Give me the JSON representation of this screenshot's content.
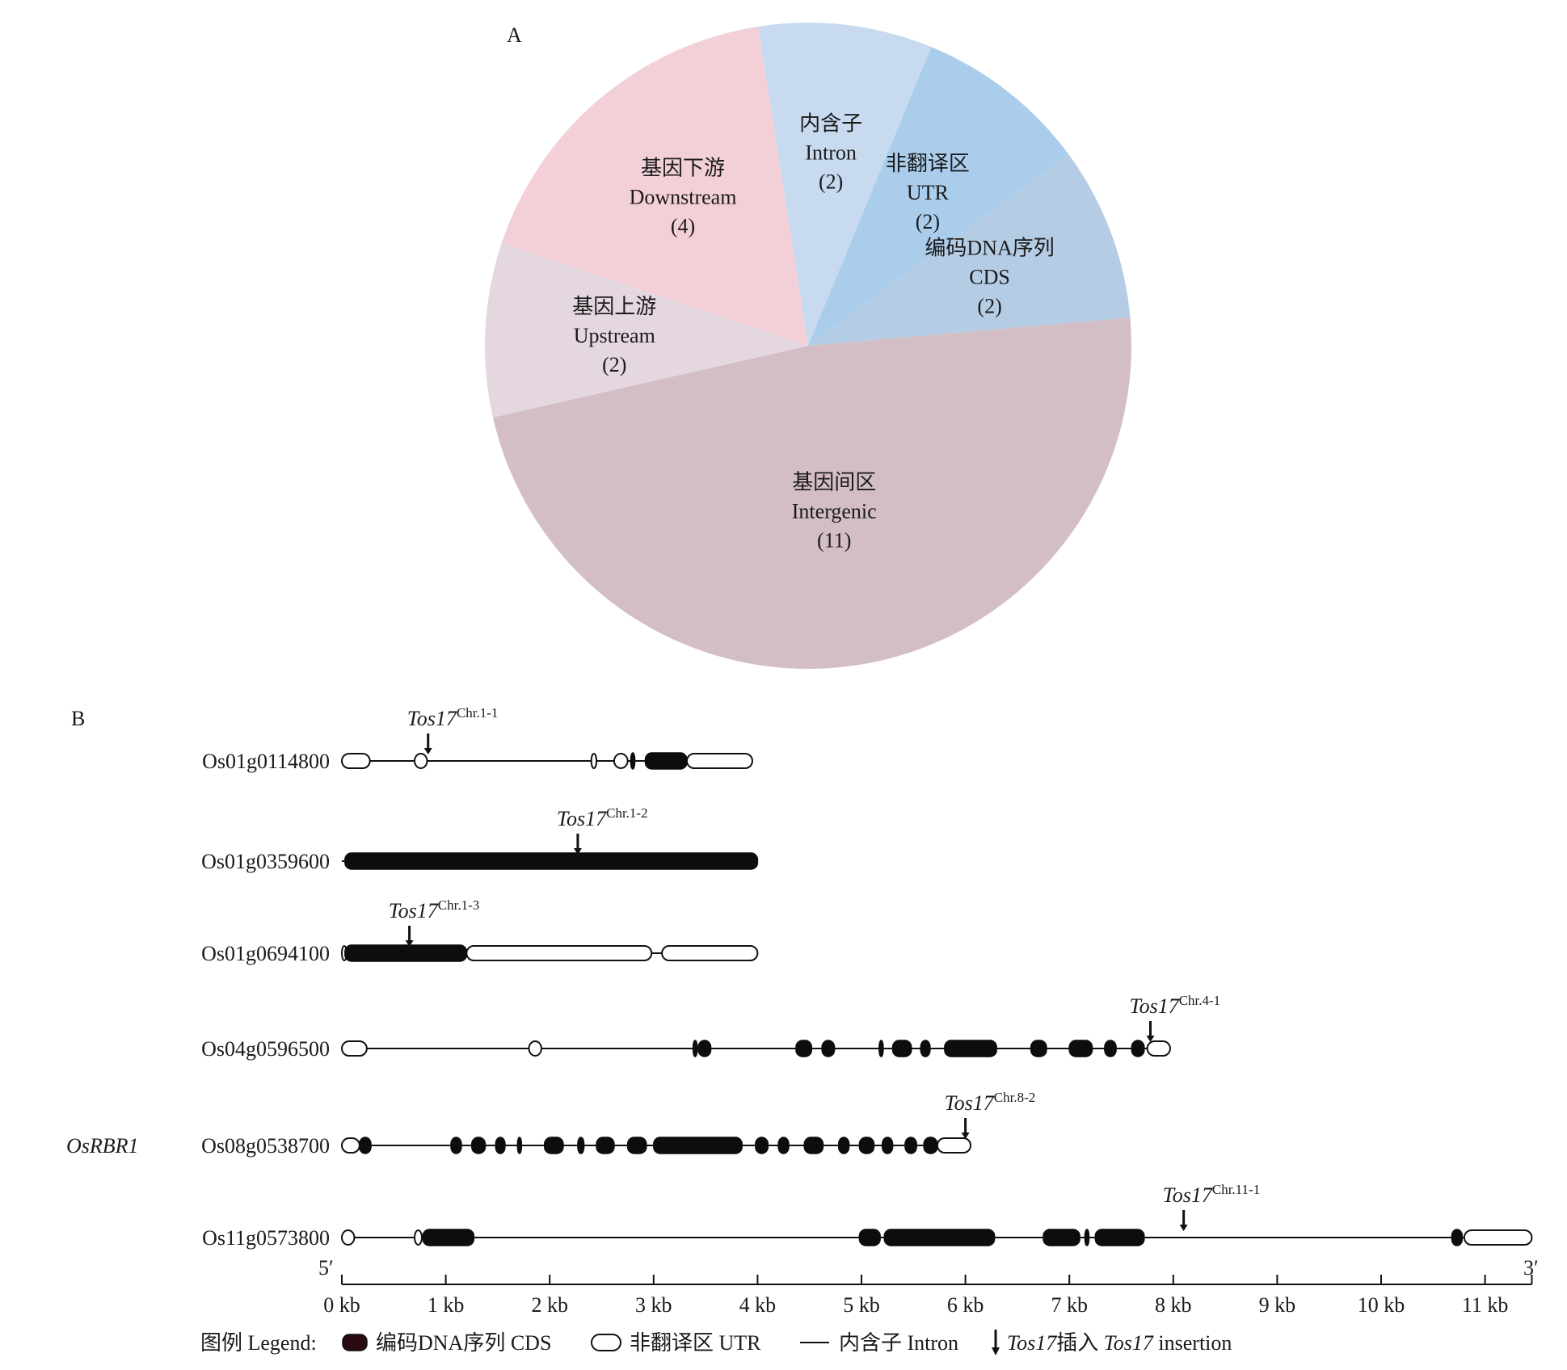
{
  "chart_data": [
    {
      "type": "pie",
      "panel_label": "A",
      "slices": [
        {
          "zh": "基因间区",
          "en": "Intergenic",
          "count_label": "(11)",
          "value": 11,
          "color": "#d3bec5"
        },
        {
          "zh": "基因上游",
          "en": "Upstream",
          "count_label": "(2)",
          "value": 2,
          "color": "#e5d7e0"
        },
        {
          "zh": "基因下游",
          "en": "Downstream",
          "count_label": "(4)",
          "value": 4,
          "color": "#f3d0d8"
        },
        {
          "zh": "内含子",
          "en": "Intron",
          "count_label": "(2)",
          "value": 2,
          "color": "#c7daef"
        },
        {
          "zh": "非翻译区",
          "en": "UTR",
          "count_label": "(2)",
          "value": 2,
          "color": "#abcdec"
        },
        {
          "zh": "编码DNA序列",
          "en": "CDS",
          "count_label": "(2)",
          "value": 2,
          "color": "#b5cde4"
        }
      ]
    },
    {
      "type": "gene-structure",
      "panel_label": "B",
      "end_labels": {
        "left": "5′",
        "right": "3′"
      },
      "x_ticks": [
        "0 kb",
        "1 kb",
        "2 kb",
        "3 kb",
        "4 kb",
        "5 kb",
        "6 kb",
        "7 kb",
        "8 kb",
        "9 kb",
        "10 kb",
        "11 kb"
      ],
      "x_range_kb": [
        0,
        11.45
      ],
      "genes": [
        {
          "id": "Os01g0114800",
          "alias": "",
          "length_kb": 3.95,
          "utr": [
            [
              0,
              0.27
            ],
            [
              0.7,
              0.82
            ],
            [
              2.4,
              2.45
            ],
            [
              2.62,
              2.75
            ],
            [
              3.32,
              3.95
            ]
          ],
          "cds": [
            [
              2.78,
              2.8
            ],
            [
              2.92,
              3.32
            ]
          ],
          "insertion": {
            "label": "Tos17",
            "sup": "Chr.1-1",
            "pos_kb": 0.83
          }
        },
        {
          "id": "Os01g0359600",
          "alias": "",
          "length_kb": 4.0,
          "utr": [],
          "cds": [
            [
              0.03,
              4.0
            ]
          ],
          "insertion": {
            "label": "Tos17",
            "sup": "Chr.1-2",
            "pos_kb": 2.27
          }
        },
        {
          "id": "Os01g0694100",
          "alias": "",
          "length_kb": 4.0,
          "utr": [
            [
              0,
              0.03
            ],
            [
              1.2,
              2.98
            ],
            [
              3.08,
              4.0
            ]
          ],
          "cds": [
            [
              0.03,
              1.2
            ]
          ],
          "insertion": {
            "label": "Tos17",
            "sup": "Chr.1-3",
            "pos_kb": 0.65
          }
        },
        {
          "id": "Os04g0596500",
          "alias": "",
          "length_kb": 7.97,
          "utr": [
            [
              0,
              0.24
            ],
            [
              1.8,
              1.92
            ],
            [
              7.75,
              7.97
            ]
          ],
          "cds": [
            [
              3.38,
              3.4
            ],
            [
              3.43,
              3.55
            ],
            [
              4.37,
              4.52
            ],
            [
              4.62,
              4.74
            ],
            [
              5.17,
              5.2
            ],
            [
              5.3,
              5.48
            ],
            [
              5.57,
              5.66
            ],
            [
              5.8,
              6.3
            ],
            [
              6.63,
              6.78
            ],
            [
              7.0,
              7.22
            ],
            [
              7.34,
              7.45
            ],
            [
              7.6,
              7.72
            ]
          ],
          "insertion": {
            "label": "Tos17",
            "sup": "Chr.4-1",
            "pos_kb": 7.78
          }
        },
        {
          "id": "Os08g0538700",
          "alias": "OsRBR1",
          "length_kb": 6.05,
          "utr": [
            [
              0,
              0.17
            ],
            [
              5.73,
              6.05
            ]
          ],
          "cds": [
            [
              0.17,
              0.28
            ],
            [
              1.05,
              1.15
            ],
            [
              1.25,
              1.38
            ],
            [
              1.48,
              1.57
            ],
            [
              1.69,
              1.72
            ],
            [
              1.95,
              2.13
            ],
            [
              2.27,
              2.33
            ],
            [
              2.45,
              2.62
            ],
            [
              2.75,
              2.93
            ],
            [
              3.0,
              3.85
            ],
            [
              3.98,
              4.1
            ],
            [
              4.2,
              4.3
            ],
            [
              4.45,
              4.63
            ],
            [
              4.78,
              4.88
            ],
            [
              4.98,
              5.12
            ],
            [
              5.2,
              5.3
            ],
            [
              5.42,
              5.53
            ],
            [
              5.6,
              5.73
            ]
          ],
          "insertion": {
            "label": "Tos17",
            "sup": "Chr.8-2",
            "pos_kb": 6.0
          }
        },
        {
          "id": "Os11g0573800",
          "alias": "",
          "length_kb": 11.45,
          "utr": [
            [
              0,
              0.12
            ],
            [
              0.7,
              0.77
            ],
            [
              10.8,
              11.45
            ]
          ],
          "cds": [
            [
              0.78,
              1.27
            ],
            [
              4.98,
              5.18
            ],
            [
              5.22,
              6.28
            ],
            [
              6.75,
              7.1
            ],
            [
              7.15,
              7.18
            ],
            [
              7.25,
              7.72
            ],
            [
              10.68,
              10.78
            ]
          ],
          "insertion": {
            "label": "Tos17",
            "sup": "Chr.11-1",
            "pos_kb": 8.1
          }
        }
      ],
      "legend": {
        "title": "图例 Legend:",
        "cds": "编码DNA序列 CDS",
        "utr": "非翻译区 UTR",
        "intron": "内含子 Intron",
        "insertion_zh_a": "Tos17",
        "insertion_zh_b": "插入",
        "insertion_en_a": "Tos17",
        "insertion_en_b": " insertion"
      }
    }
  ]
}
